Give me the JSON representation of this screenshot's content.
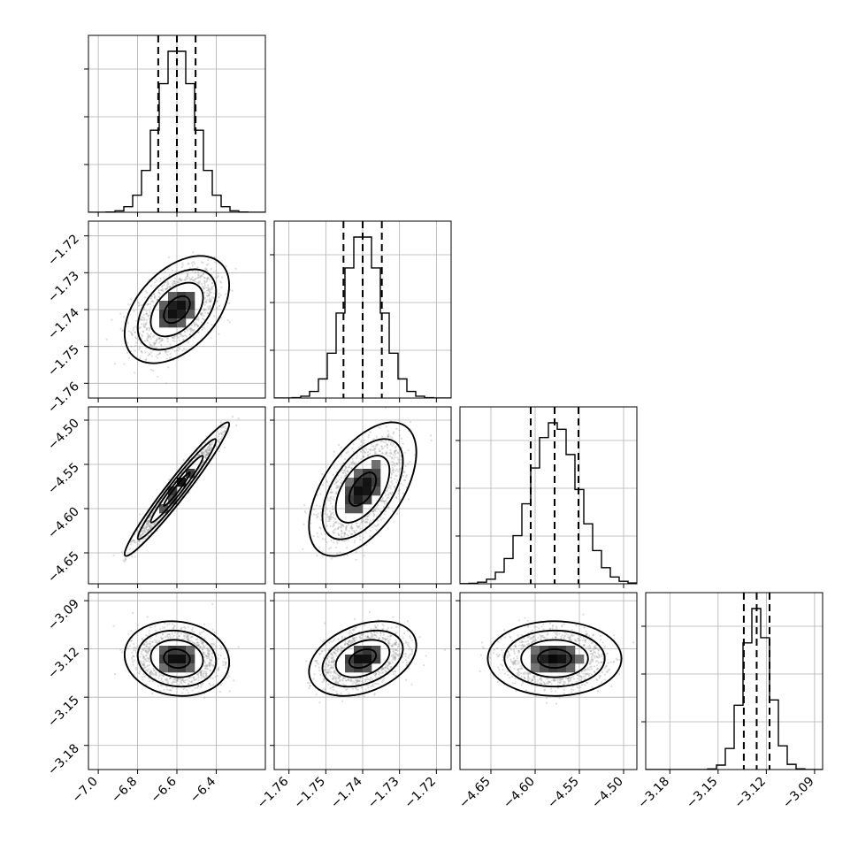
{
  "chart_data": {
    "type": "corner",
    "title": "",
    "parameters": [
      {
        "mean": -6.6,
        "std": 0.095,
        "range": [
          -7.05,
          -6.15
        ],
        "quantiles": [
          -6.695,
          -6.6,
          -6.505
        ],
        "ticks": [
          -7.0,
          -6.8,
          -6.6,
          -6.4
        ],
        "tick_labels": [
          "−7.0",
          "−6.8",
          "−6.6",
          "−6.4"
        ]
      },
      {
        "mean": -1.74,
        "std": 0.0052,
        "range": [
          -1.764,
          -1.716
        ],
        "quantiles": [
          -1.7452,
          -1.74,
          -1.7348
        ],
        "ticks": [
          -1.76,
          -1.75,
          -1.74,
          -1.73,
          -1.72
        ],
        "tick_labels": [
          "−1.76",
          "−1.75",
          "−1.74",
          "−1.73",
          "−1.72"
        ]
      },
      {
        "mean": -4.578,
        "std": 0.027,
        "range": [
          -4.685,
          -4.485
        ],
        "quantiles": [
          -4.605,
          -4.578,
          -4.551
        ],
        "ticks": [
          -4.65,
          -4.6,
          -4.55,
          -4.5
        ],
        "tick_labels": [
          "−4.65",
          "−4.60",
          "−4.55",
          "−4.50"
        ]
      },
      {
        "mean": -3.126,
        "std": 0.0083,
        "range": [
          -3.195,
          -3.085
        ],
        "quantiles": [
          -3.134,
          -3.126,
          -3.118
        ],
        "ticks": [
          -3.18,
          -3.15,
          -3.12,
          -3.09
        ],
        "tick_labels": [
          "−3.18",
          "−3.15",
          "−3.12",
          "−3.09"
        ]
      }
    ],
    "correlations": [
      {
        "i": 1,
        "j": 0,
        "rho": 0.45
      },
      {
        "i": 2,
        "j": 0,
        "rho": 0.97
      },
      {
        "i": 2,
        "j": 1,
        "rho": 0.55
      },
      {
        "i": 3,
        "j": 0,
        "rho": -0.1
      },
      {
        "i": 3,
        "j": 1,
        "rho": 0.35
      },
      {
        "i": 3,
        "j": 2,
        "rho": 0.0
      }
    ],
    "contour_levels_sigma": [
      0.5,
      1.0,
      1.5,
      2.0
    ],
    "n_samples": 10000,
    "n_bins": 20,
    "grid": true
  }
}
